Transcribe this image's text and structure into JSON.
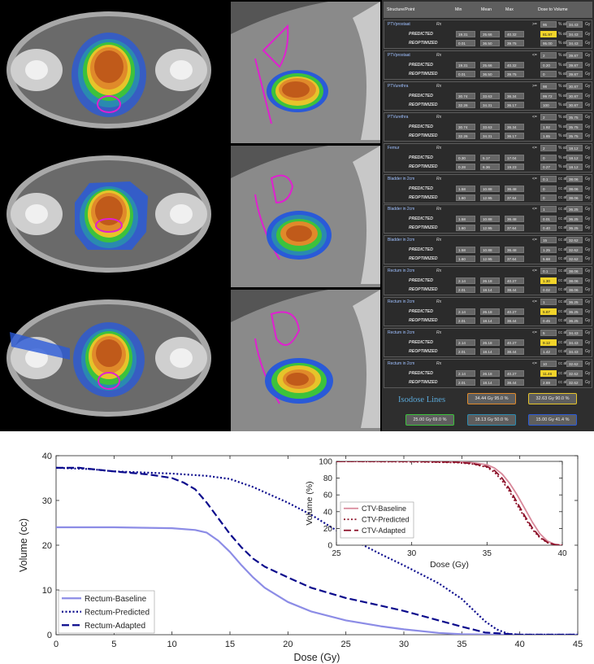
{
  "panel": {
    "headers": [
      "Structure/Point",
      "Min",
      "Mean",
      "Max",
      "Dose to Volume"
    ],
    "blocks": [
      {
        "name": "PTVprostaat",
        "op": ">=",
        "target": "95",
        "unit1": "% at",
        "dose": "34.43",
        "unit2": "Gy",
        "pred": [
          "19.31",
          "25.66",
          "40.32",
          "81.97",
          "34.43"
        ],
        "reopt": [
          "0.01",
          "36.50",
          "39.75",
          "95.00",
          "34.43"
        ],
        "hl": true
      },
      {
        "name": "PTVprostaat",
        "op": "<=",
        "target": "2",
        "unit1": "% at",
        "dose": "39.87",
        "unit2": "Gy",
        "pred": [
          "19.31",
          "25.66",
          "40.32",
          "0.20",
          "39.87"
        ],
        "reopt": [
          "0.01",
          "36.50",
          "39.75",
          "0",
          "39.87"
        ],
        "hl": false
      },
      {
        "name": "PTVurethra",
        "op": ">=",
        "target": "98",
        "unit1": "% at",
        "dose": "30.87",
        "unit2": "Gy",
        "pred": [
          "30.74",
          "33.63",
          "36.34",
          "99.72",
          "30.87"
        ],
        "reopt": [
          "32.26",
          "34.31",
          "36.17",
          "100",
          "30.87"
        ],
        "hl": false
      },
      {
        "name": "PTVurethra",
        "op": "<=",
        "target": "2",
        "unit1": "% at",
        "dose": "35.75",
        "unit2": "Gy",
        "pred": [
          "30.74",
          "33.63",
          "36.34",
          "1.92",
          "35.75"
        ],
        "reopt": [
          "32.26",
          "34.31",
          "36.17",
          "1.65",
          "35.75"
        ],
        "hl": false
      },
      {
        "name": "Femur",
        "op": "<=",
        "target": "2",
        "unit1": "% at",
        "dose": "18.12",
        "unit2": "Gy",
        "pred": [
          "0.30",
          "5.17",
          "17.04",
          "0",
          "18.12"
        ],
        "reopt": [
          "0.28",
          "6.36",
          "19.23",
          "0.27",
          "18.12"
        ],
        "hl": false
      },
      {
        "name": "Bladder in 2cm",
        "op": "<=",
        "target": "0.1",
        "unit1": "cc at",
        "dose": "38.06",
        "unit2": "Gy",
        "pred": [
          "1.58",
          "10.88",
          "36.48",
          "0",
          "38.06"
        ],
        "reopt": [
          "1.60",
          "12.95",
          "37.64",
          "0",
          "38.06"
        ],
        "hl": false
      },
      {
        "name": "Bladder in 2cm",
        "op": "<=",
        "target": "1",
        "unit1": "cc at",
        "dose": "36.25",
        "unit2": "Gy",
        "pred": [
          "1.58",
          "10.88",
          "36.48",
          "0.01",
          "36.25"
        ],
        "reopt": [
          "1.60",
          "12.95",
          "37.64",
          "0.40",
          "36.25"
        ],
        "hl": false
      },
      {
        "name": "Bladder in 2cm",
        "op": "<=",
        "target": "15",
        "unit1": "cc at",
        "dose": "32.62",
        "unit2": "Gy",
        "pred": [
          "1.58",
          "10.88",
          "36.48",
          "1.25",
          "32.62"
        ],
        "reopt": [
          "1.60",
          "12.95",
          "37.64",
          "5.68",
          "32.62"
        ],
        "hl": false
      },
      {
        "name": "Rectum in 2cm",
        "op": "<=",
        "target": "0.1",
        "unit1": "cc at",
        "dose": "38.06",
        "unit2": "Gy",
        "pred": [
          "2.14",
          "26.18",
          "40.27",
          "1.30",
          "38.06"
        ],
        "reopt": [
          "2.01",
          "18.14",
          "38.44",
          "0.02",
          "38.06"
        ],
        "hl": true
      },
      {
        "name": "Rectum in 2cm",
        "op": "<=",
        "target": "1",
        "unit1": "cc at",
        "dose": "36.25",
        "unit2": "Gy",
        "pred": [
          "2.14",
          "26.18",
          "40.27",
          "5.67",
          "36.25"
        ],
        "reopt": [
          "2.01",
          "18.14",
          "38.44",
          "0.45",
          "36.25"
        ],
        "hl": true
      },
      {
        "name": "Rectum in 2cm",
        "op": "<=",
        "target": "5",
        "unit1": "cc at",
        "dose": "34.43",
        "unit2": "Gy",
        "pred": [
          "2.14",
          "26.18",
          "40.27",
          "9.12",
          "34.43"
        ],
        "reopt": [
          "2.01",
          "18.14",
          "38.44",
          "1.42",
          "34.43"
        ],
        "hl": true
      },
      {
        "name": "Rectum in 2cm",
        "op": "<=",
        "target": "10",
        "unit1": "cc at",
        "dose": "32.62",
        "unit2": "Gy",
        "pred": [
          "2.14",
          "26.18",
          "40.27",
          "11.46",
          "32.62"
        ],
        "reopt": [
          "2.01",
          "18.14",
          "38.44",
          "2.69",
          "32.62"
        ],
        "hl": true
      }
    ],
    "rx_label": "Rx",
    "pred_label": "PREDICTED",
    "reopt_label": "REOPTIMIZED",
    "isodose_title": "Isodose Lines",
    "isodose": [
      {
        "label": "34.44 Gy  95.0 %",
        "color": "#e08a2a"
      },
      {
        "label": "32.63 Gy  90.0 %",
        "color": "#e6c42a"
      },
      {
        "label": "25.00 Gy  69.0 %",
        "color": "#3cc23c"
      },
      {
        "label": "18.13 Gy  50.0 %",
        "color": "#2a8ab0"
      },
      {
        "label": "15.00 Gy  41.4 %",
        "color": "#2a5ad8"
      }
    ]
  },
  "chart_data": [
    {
      "type": "line",
      "xlabel": "Dose (Gy)",
      "ylabel": "Volume (cc)",
      "xlim": [
        0,
        45
      ],
      "ylim": [
        0,
        40
      ],
      "xticks": [
        0,
        5,
        10,
        15,
        20,
        25,
        30,
        35,
        40,
        45
      ],
      "yticks": [
        0,
        10,
        20,
        30,
        40
      ],
      "grid": false,
      "legend": "bottom-left",
      "series": [
        {
          "name": "Rectum-Baseline",
          "color": "#8c8ce6",
          "style": "solid",
          "x": [
            0,
            5,
            10,
            12,
            13,
            14,
            15,
            16,
            17,
            18,
            20,
            22,
            25,
            28,
            30,
            33,
            35,
            38,
            45
          ],
          "y": [
            24,
            24,
            23.8,
            23.4,
            22.8,
            21,
            18.5,
            15.5,
            12.8,
            10.5,
            7.3,
            5.2,
            3.2,
            1.9,
            1.2,
            0.4,
            0.1,
            0,
            0
          ]
        },
        {
          "name": "Rectum-Predicted",
          "color": "#0a0a8c",
          "style": "dotted",
          "x": [
            0,
            3,
            5,
            8,
            10,
            13,
            15,
            17,
            20,
            22,
            25,
            28,
            30,
            33,
            35,
            36,
            37,
            38,
            39,
            40,
            45
          ],
          "y": [
            37.3,
            37,
            36.5,
            36.2,
            36,
            35.5,
            34.8,
            33,
            29.5,
            26.8,
            22,
            18,
            15.5,
            11.5,
            8,
            5.5,
            3,
            1.2,
            0.2,
            0,
            0
          ]
        },
        {
          "name": "Rectum-Adapted",
          "color": "#0a0a8c",
          "style": "dashed",
          "x": [
            0,
            2,
            5,
            8,
            10,
            11,
            12,
            13,
            14,
            15,
            16,
            17,
            18,
            20,
            22,
            25,
            28,
            30,
            33,
            35,
            37,
            40,
            45
          ],
          "y": [
            37.3,
            37.3,
            36.5,
            35.8,
            35,
            34,
            32.5,
            29.5,
            26,
            22.5,
            19.5,
            17,
            15.2,
            12.8,
            10.5,
            8.2,
            6.5,
            5.3,
            3.2,
            1.8,
            0.5,
            0,
            0
          ]
        }
      ]
    },
    {
      "type": "line",
      "xlabel": "Dose (Gy)",
      "ylabel": "Volume (%)",
      "xlim": [
        25,
        40
      ],
      "ylim": [
        0,
        100
      ],
      "xticks": [
        25,
        30,
        35,
        40
      ],
      "yticks": [
        0,
        20,
        40,
        60,
        80,
        100
      ],
      "grid": false,
      "legend": "bottom-left",
      "series": [
        {
          "name": "CTV-Baseline",
          "color": "#d8889a",
          "style": "solid",
          "x": [
            25,
            30,
            33,
            34,
            35,
            35.5,
            36,
            36.5,
            37,
            37.5,
            38,
            38.5,
            39,
            39.5,
            40
          ],
          "y": [
            100,
            100,
            99.5,
            98.5,
            96,
            92,
            85,
            74,
            60,
            44,
            28,
            14,
            5,
            1,
            0
          ]
        },
        {
          "name": "CTV-Predicted",
          "color": "#8c1028",
          "style": "dotted",
          "x": [
            25,
            30,
            33,
            34,
            35,
            35.5,
            36,
            36.5,
            37,
            37.5,
            38,
            38.5,
            39,
            39.5,
            40
          ],
          "y": [
            100,
            99.5,
            98.5,
            97,
            93,
            87,
            77,
            64,
            48,
            33,
            19,
            9,
            3,
            0.5,
            0
          ]
        },
        {
          "name": "CTV-Adapted",
          "color": "#8c1028",
          "style": "dashed",
          "x": [
            25,
            30,
            33,
            34,
            35,
            35.5,
            36,
            36.5,
            37,
            37.5,
            38,
            38.5,
            39,
            39.5,
            40
          ],
          "y": [
            100,
            100,
            99,
            97.5,
            94,
            89,
            80,
            67,
            51,
            35,
            21,
            10,
            3.5,
            0.7,
            0
          ]
        }
      ]
    }
  ]
}
